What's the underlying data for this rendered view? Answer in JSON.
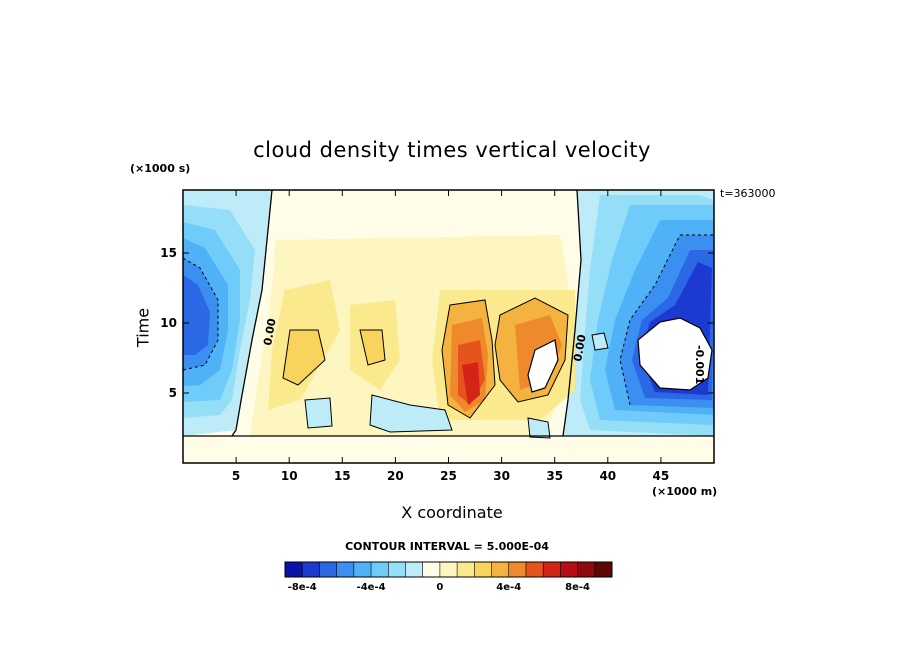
{
  "chart_data": {
    "type": "heatmap",
    "title": "cloud density times vertical velocity",
    "xlabel": "X coordinate",
    "ylabel": "Time",
    "x_unit": "(×1000 m)",
    "y_unit": "(×1000 s)",
    "timestamp": "t=363000",
    "contour_interval_label": "CONTOUR INTERVAL = 5.000E-04",
    "xlim": [
      0,
      50
    ],
    "ylim": [
      0,
      19.5
    ],
    "x_ticks": [
      5,
      10,
      15,
      20,
      25,
      30,
      35,
      40,
      45
    ],
    "y_ticks": [
      5,
      10,
      15
    ],
    "colorbar": {
      "min": -0.0009,
      "max": 0.001,
      "step": 0.0001,
      "tick_values": [
        -0.0008,
        -0.0004,
        0,
        0.0004,
        0.0008
      ],
      "tick_labels": [
        "-8e-4",
        "-4e-4",
        "0",
        "4e-4",
        "8e-4"
      ],
      "colors": [
        "#0a12a8",
        "#1c3ad2",
        "#2a68e6",
        "#3b8ff0",
        "#4fb2f6",
        "#6fccfa",
        "#94def8",
        "#bdecf8",
        "#fffde8",
        "#fdf6c0",
        "#fbe98e",
        "#f8d45c",
        "#f4b33e",
        "#ee8a2c",
        "#e6541e",
        "#d42418",
        "#b60e14",
        "#8e0a0e",
        "#5e0606"
      ]
    },
    "contour_labels": [
      "0.00",
      "0.00",
      "-0.001"
    ]
  }
}
